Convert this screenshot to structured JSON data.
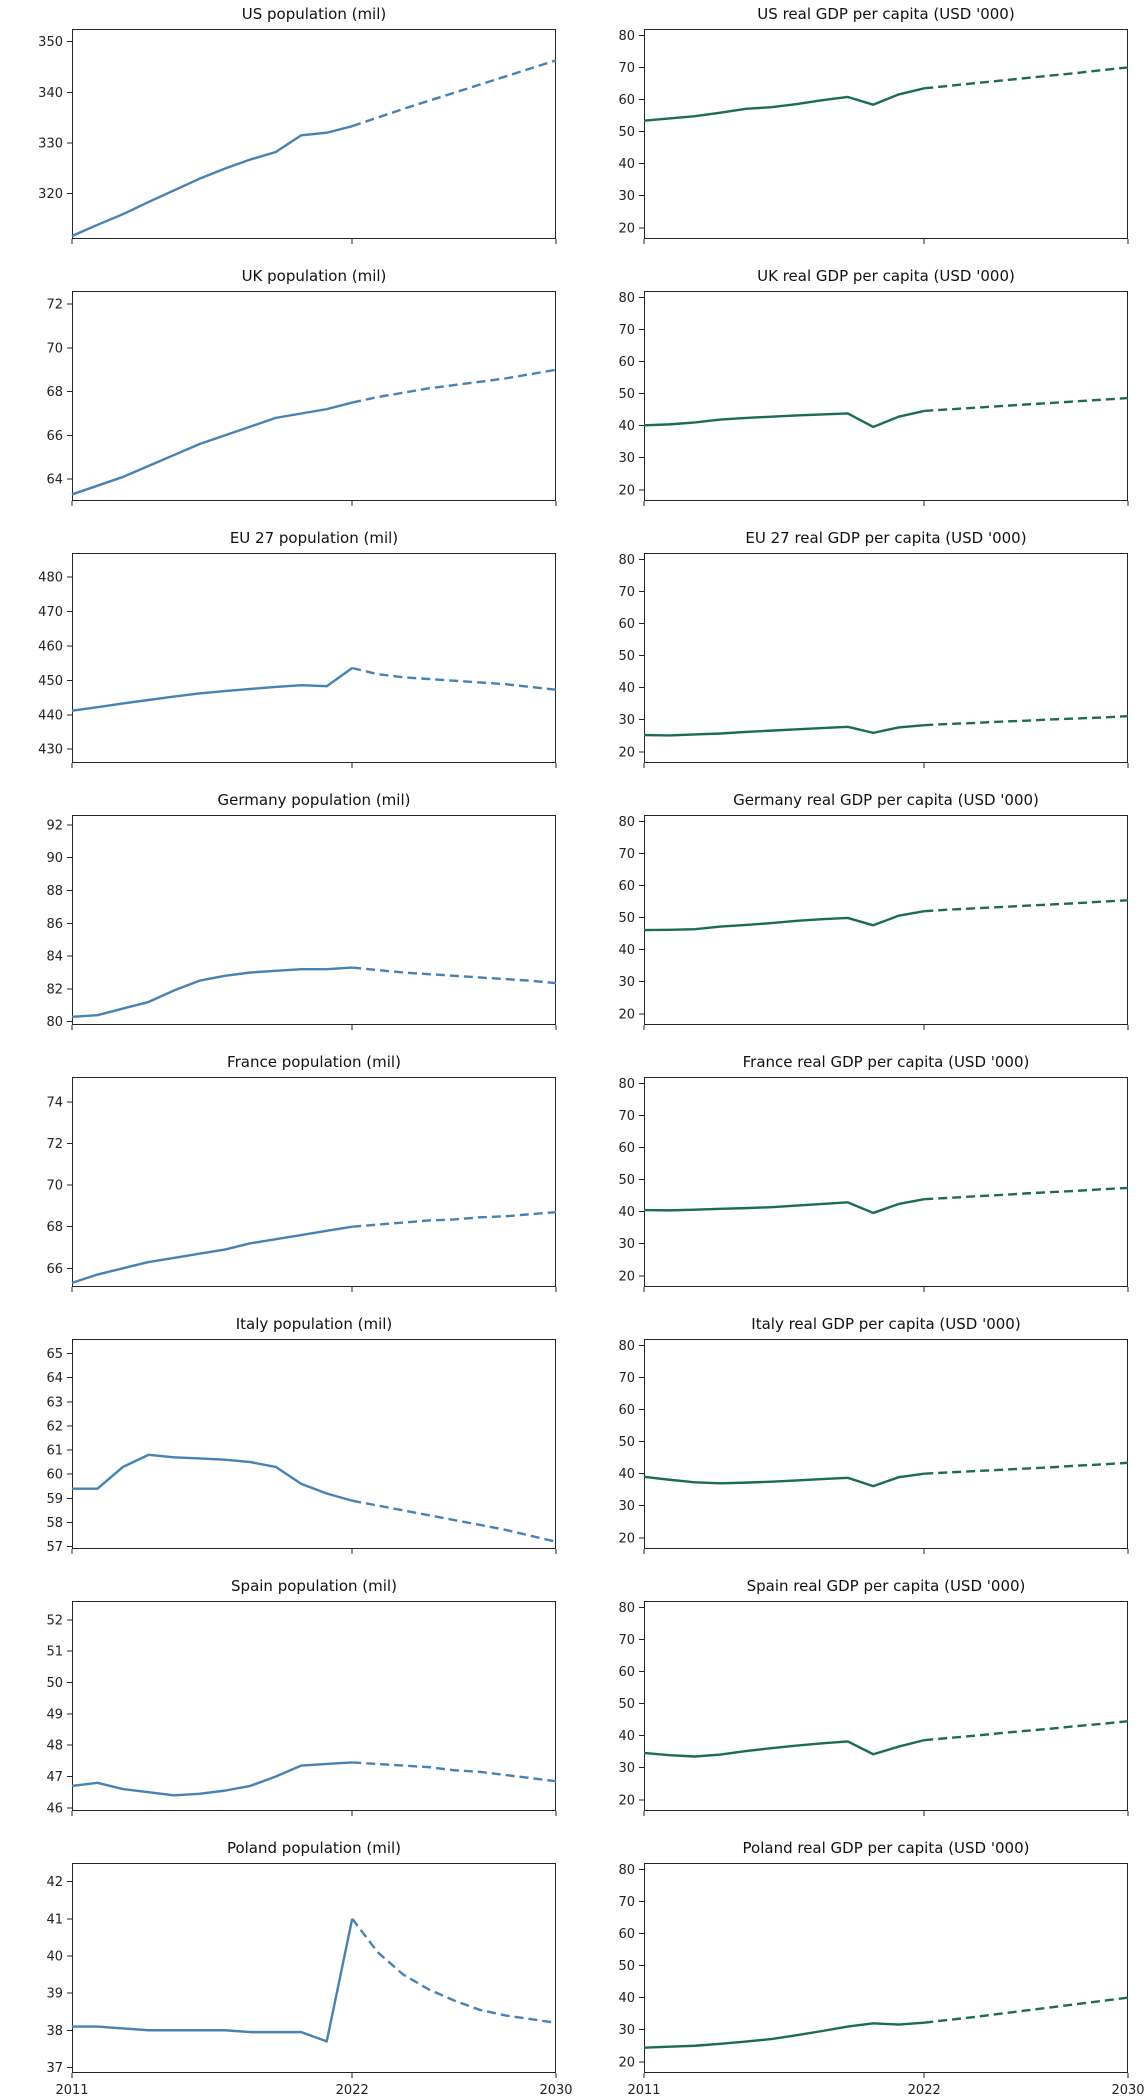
{
  "page": {
    "background": "#ffffff"
  },
  "colors": {
    "population_line": "#4682b4",
    "gdp_line": "#1b6d4e",
    "axis": "#262626",
    "text": "#222222"
  },
  "series_styles": {
    "history": "solid",
    "forecast": "dashed"
  },
  "axis": {
    "x_range": [
      2011,
      2030
    ],
    "x_ticks": [
      2011,
      2022,
      2030
    ],
    "x_tick_labels": [
      "2011",
      "2022",
      "2030"
    ],
    "years_history": [
      2011,
      2012,
      2013,
      2014,
      2015,
      2016,
      2017,
      2018,
      2019,
      2020,
      2021,
      2022
    ],
    "years_forecast": [
      2022,
      2023,
      2024,
      2025,
      2026,
      2027,
      2028,
      2029,
      2030
    ]
  },
  "chart_data": [
    {
      "type": "line",
      "title": "US population (mil)",
      "series": "population",
      "ylim": [
        311,
        352.5
      ],
      "yticks": [
        320,
        330,
        340,
        350
      ],
      "history": [
        311.6,
        313.8,
        315.9,
        318.3,
        320.6,
        322.9,
        324.9,
        326.7,
        328.2,
        331.5,
        332.0,
        333.3
      ],
      "forecast": [
        333.3,
        335.0,
        336.7,
        338.3,
        339.9,
        341.5,
        343.1,
        344.7,
        346.3
      ]
    },
    {
      "type": "line",
      "title": "US real GDP per capita (USD '000)",
      "series": "gdp",
      "ylim": [
        16.5,
        82
      ],
      "yticks": [
        20,
        30,
        40,
        50,
        60,
        70,
        80
      ],
      "history": [
        53.4,
        54.1,
        54.8,
        55.9,
        57.1,
        57.6,
        58.6,
        59.8,
        60.8,
        58.4,
        61.6,
        63.5
      ],
      "forecast": [
        63.5,
        64.3,
        65.1,
        65.9,
        66.7,
        67.5,
        68.3,
        69.2,
        70.0
      ]
    },
    {
      "type": "line",
      "title": "UK population (mil)",
      "series": "population",
      "ylim": [
        63.0,
        72.6
      ],
      "yticks": [
        64,
        66,
        68,
        70,
        72
      ],
      "history": [
        63.3,
        63.7,
        64.1,
        64.6,
        65.1,
        65.6,
        66.0,
        66.4,
        66.8,
        67.0,
        67.2,
        67.5
      ],
      "forecast": [
        67.5,
        67.75,
        67.95,
        68.15,
        68.3,
        68.45,
        68.6,
        68.8,
        69.0
      ]
    },
    {
      "type": "line",
      "title": "UK real GDP per capita (USD '000)",
      "series": "gdp",
      "ylim": [
        16.5,
        82
      ],
      "yticks": [
        20,
        30,
        40,
        50,
        60,
        70,
        80
      ],
      "history": [
        40.1,
        40.4,
        41.0,
        41.9,
        42.4,
        42.8,
        43.2,
        43.5,
        43.8,
        39.6,
        42.8,
        44.6
      ],
      "forecast": [
        44.6,
        45.1,
        45.6,
        46.1,
        46.6,
        47.1,
        47.6,
        48.1,
        48.6
      ]
    },
    {
      "type": "line",
      "title": "EU 27 population (mil)",
      "series": "population",
      "ylim": [
        426,
        487
      ],
      "yticks": [
        430,
        440,
        450,
        460,
        470,
        480
      ],
      "history": [
        441.2,
        442.2,
        443.3,
        444.3,
        445.3,
        446.2,
        446.9,
        447.5,
        448.1,
        448.6,
        448.3,
        453.6
      ],
      "forecast": [
        453.6,
        451.8,
        450.9,
        450.4,
        449.9,
        449.4,
        448.9,
        448.1,
        447.3
      ]
    },
    {
      "type": "line",
      "title": "EU 27 real GDP per capita (USD '000)",
      "series": "gdp",
      "ylim": [
        16.5,
        82
      ],
      "yticks": [
        20,
        30,
        40,
        50,
        60,
        70,
        80
      ],
      "history": [
        25.2,
        25.1,
        25.4,
        25.7,
        26.2,
        26.6,
        27.0,
        27.4,
        27.8,
        25.9,
        27.6,
        28.3
      ],
      "forecast": [
        28.3,
        28.7,
        29.0,
        29.4,
        29.7,
        30.1,
        30.4,
        30.7,
        31.1
      ]
    },
    {
      "type": "line",
      "title": "Germany population (mil)",
      "series": "population",
      "ylim": [
        79.8,
        92.6
      ],
      "yticks": [
        80,
        82,
        84,
        86,
        88,
        90,
        92
      ],
      "history": [
        80.3,
        80.4,
        80.8,
        81.2,
        81.9,
        82.5,
        82.8,
        83.0,
        83.1,
        83.2,
        83.2,
        83.3
      ],
      "forecast": [
        83.3,
        83.15,
        83.0,
        82.9,
        82.8,
        82.7,
        82.6,
        82.5,
        82.35
      ]
    },
    {
      "type": "line",
      "title": "Germany real GDP per capita (USD '000)",
      "series": "gdp",
      "ylim": [
        16.5,
        82
      ],
      "yticks": [
        20,
        30,
        40,
        50,
        60,
        70,
        80
      ],
      "history": [
        46.1,
        46.2,
        46.4,
        47.2,
        47.7,
        48.3,
        49.0,
        49.5,
        49.9,
        47.6,
        50.6,
        52.0
      ],
      "forecast": [
        52.0,
        52.5,
        52.9,
        53.3,
        53.7,
        54.1,
        54.5,
        55.0,
        55.4
      ]
    },
    {
      "type": "line",
      "title": "France population (mil)",
      "series": "population",
      "ylim": [
        65.1,
        75.2
      ],
      "yticks": [
        66,
        68,
        70,
        72,
        74
      ],
      "history": [
        65.3,
        65.7,
        66.0,
        66.3,
        66.5,
        66.7,
        66.9,
        67.2,
        67.4,
        67.6,
        67.8,
        68.0
      ],
      "forecast": [
        68.0,
        68.1,
        68.2,
        68.3,
        68.35,
        68.45,
        68.5,
        68.6,
        68.7
      ]
    },
    {
      "type": "line",
      "title": "France real GDP per capita (USD '000)",
      "series": "gdp",
      "ylim": [
        16.5,
        82
      ],
      "yticks": [
        20,
        30,
        40,
        50,
        60,
        70,
        80
      ],
      "history": [
        40.5,
        40.4,
        40.6,
        40.9,
        41.1,
        41.4,
        41.9,
        42.4,
        42.9,
        39.6,
        42.4,
        43.9
      ],
      "forecast": [
        43.9,
        44.3,
        44.8,
        45.2,
        45.7,
        46.1,
        46.5,
        47.0,
        47.4
      ]
    },
    {
      "type": "line",
      "title": "Italy population (mil)",
      "series": "population",
      "ylim": [
        56.9,
        65.6
      ],
      "yticks": [
        57,
        58,
        59,
        60,
        61,
        62,
        63,
        64,
        65
      ],
      "history": [
        59.4,
        59.4,
        60.3,
        60.8,
        60.7,
        60.65,
        60.6,
        60.5,
        60.3,
        59.6,
        59.2,
        58.9
      ],
      "forecast": [
        58.9,
        58.7,
        58.5,
        58.3,
        58.1,
        57.9,
        57.7,
        57.45,
        57.2
      ]
    },
    {
      "type": "line",
      "title": "Italy real GDP per capita (USD '000)",
      "series": "gdp",
      "ylim": [
        16.5,
        82
      ],
      "yticks": [
        20,
        30,
        40,
        50,
        60,
        70,
        80
      ],
      "history": [
        39.0,
        38.1,
        37.3,
        37.0,
        37.2,
        37.5,
        37.9,
        38.3,
        38.7,
        36.1,
        38.9,
        40.0
      ],
      "forecast": [
        40.0,
        40.4,
        40.8,
        41.2,
        41.6,
        42.0,
        42.5,
        42.9,
        43.4
      ]
    },
    {
      "type": "line",
      "title": "Spain population (mil)",
      "series": "population",
      "ylim": [
        45.9,
        52.6
      ],
      "yticks": [
        46,
        47,
        48,
        49,
        50,
        51,
        52
      ],
      "history": [
        46.7,
        46.8,
        46.6,
        46.5,
        46.4,
        46.45,
        46.55,
        46.7,
        47.0,
        47.35,
        47.4,
        47.45
      ],
      "forecast": [
        47.45,
        47.4,
        47.35,
        47.3,
        47.2,
        47.15,
        47.05,
        46.95,
        46.85
      ]
    },
    {
      "type": "line",
      "title": "Spain real GDP per capita (USD '000)",
      "series": "gdp",
      "ylim": [
        16.5,
        82
      ],
      "yticks": [
        20,
        30,
        40,
        50,
        60,
        70,
        80
      ],
      "history": [
        34.6,
        33.9,
        33.5,
        34.1,
        35.2,
        36.1,
        36.9,
        37.6,
        38.2,
        34.2,
        36.6,
        38.6
      ],
      "forecast": [
        38.6,
        39.3,
        40.0,
        40.8,
        41.5,
        42.2,
        43.0,
        43.7,
        44.5
      ]
    },
    {
      "type": "line",
      "title": "Poland population (mil)",
      "series": "population",
      "ylim": [
        36.85,
        42.5
      ],
      "yticks": [
        37,
        38,
        39,
        40,
        41,
        42
      ],
      "history": [
        38.1,
        38.1,
        38.05,
        38.0,
        38.0,
        38.0,
        38.0,
        37.95,
        37.95,
        37.95,
        37.7,
        41.0
      ],
      "forecast": [
        41.0,
        40.1,
        39.5,
        39.1,
        38.8,
        38.55,
        38.4,
        38.3,
        38.2
      ]
    },
    {
      "type": "line",
      "title": "Poland real GDP per capita (USD '000)",
      "series": "gdp",
      "ylim": [
        16.5,
        82
      ],
      "yticks": [
        20,
        30,
        40,
        50,
        60,
        70,
        80
      ],
      "history": [
        24.4,
        24.7,
        25.0,
        25.6,
        26.3,
        27.1,
        28.3,
        29.6,
        31.0,
        32.0,
        31.6,
        32.2
      ],
      "forecast": [
        32.2,
        33.1,
        34.0,
        35.0,
        36.0,
        37.0,
        38.0,
        39.0,
        40.0
      ]
    }
  ]
}
